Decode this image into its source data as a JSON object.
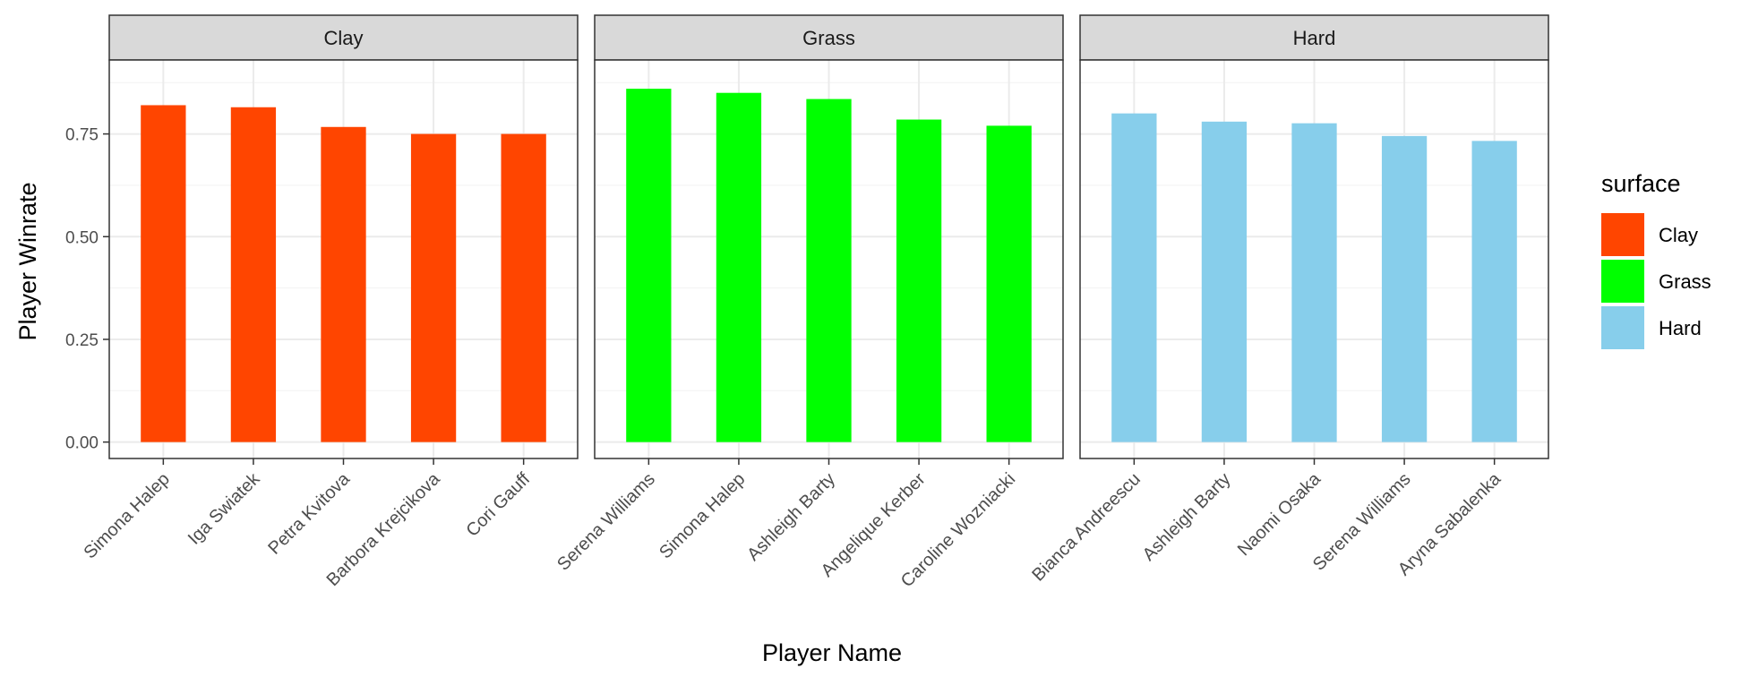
{
  "chart_data": {
    "type": "bar",
    "xlabel": "Player Name",
    "ylabel": "Player Winrate",
    "ylim": [
      -0.04,
      0.93
    ],
    "yticks": [
      0.0,
      0.25,
      0.5,
      0.75
    ],
    "ytick_labels": [
      "0.00",
      "0.25",
      "0.50",
      "0.75"
    ],
    "grid": true,
    "legend": {
      "title": "surface",
      "position": "right",
      "entries": [
        {
          "label": "Clay",
          "color": "#FF4500"
        },
        {
          "label": "Grass",
          "color": "#00FF00"
        },
        {
          "label": "Hard",
          "color": "#87CEEB"
        }
      ]
    },
    "facets": [
      {
        "label": "Clay",
        "color": "#FF4500",
        "categories": [
          "Simona Halep",
          "Iga Swiatek",
          "Petra Kvitova",
          "Barbora Krejcikova",
          "Cori Gauff"
        ],
        "values": [
          0.82,
          0.815,
          0.767,
          0.75,
          0.75
        ]
      },
      {
        "label": "Grass",
        "color": "#00FF00",
        "categories": [
          "Serena Williams",
          "Simona Halep",
          "Ashleigh Barty",
          "Angelique Kerber",
          "Caroline Wozniacki"
        ],
        "values": [
          0.86,
          0.85,
          0.835,
          0.785,
          0.77
        ]
      },
      {
        "label": "Hard",
        "color": "#87CEEB",
        "categories": [
          "Bianca Andreescu",
          "Ashleigh Barty",
          "Naomi Osaka",
          "Serena Williams",
          "Aryna Sabalenka"
        ],
        "values": [
          0.8,
          0.78,
          0.776,
          0.745,
          0.733
        ]
      }
    ]
  }
}
